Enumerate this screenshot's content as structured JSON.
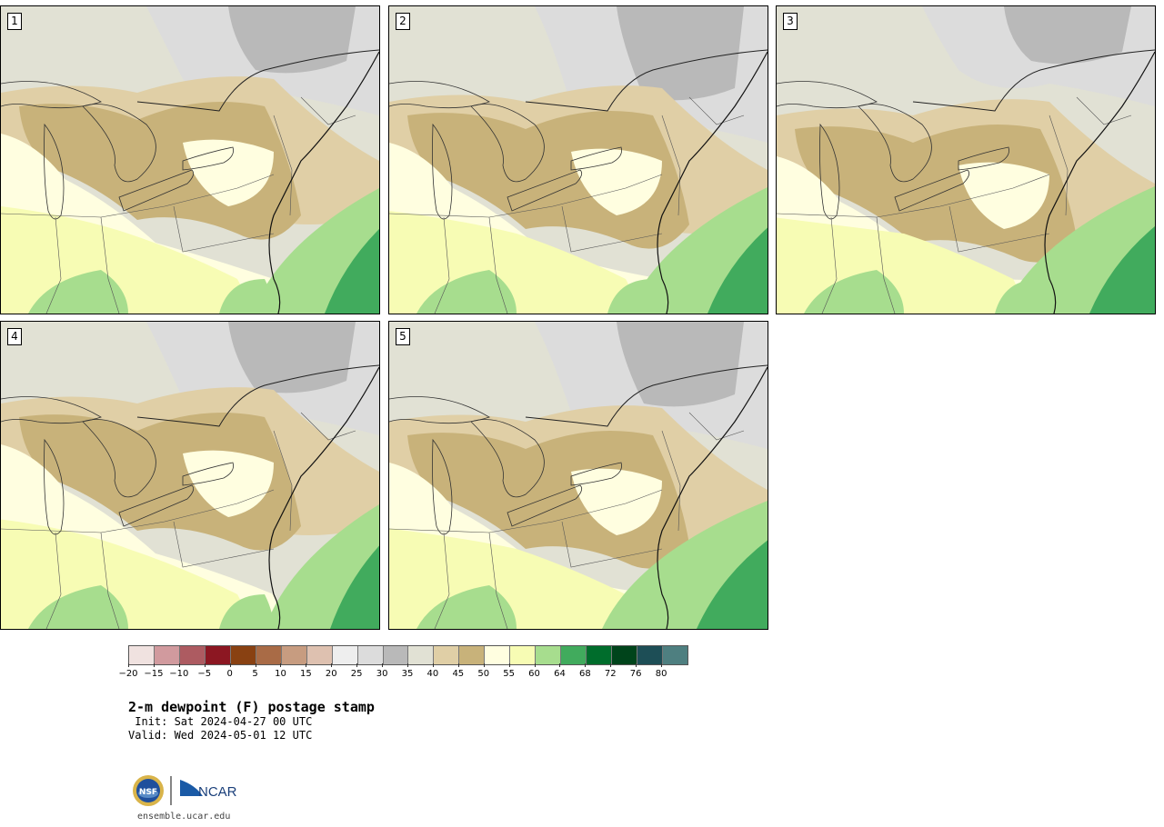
{
  "panels": [
    {
      "id": "1",
      "label": "1"
    },
    {
      "id": "2",
      "label": "2"
    },
    {
      "id": "3",
      "label": "3"
    },
    {
      "id": "4",
      "label": "4"
    },
    {
      "id": "5",
      "label": "5"
    }
  ],
  "colorbar": {
    "colors": [
      "#f0e2e0",
      "#d19a9e",
      "#ad5b61",
      "#8c1722",
      "#894112",
      "#a96b46",
      "#c79c80",
      "#dec1b0",
      "#eeeeee",
      "#dcdcdc",
      "#b9b9b9",
      "#e1e1d4",
      "#e0cfa6",
      "#c8b27a",
      "#fffee0",
      "#f7fcb4",
      "#a7dd8e",
      "#41ab5d",
      "#006d2c",
      "#00441b",
      "#1d4e56",
      "#4e7f80"
    ],
    "tick_labels": [
      "−20",
      "−15",
      "−10",
      "−5",
      "0",
      "5",
      "10",
      "15",
      "20",
      "25",
      "30",
      "35",
      "40",
      "45",
      "50",
      "55",
      "60",
      "64",
      "68",
      "72",
      "76",
      "80"
    ]
  },
  "title": "2-m dewpoint (F) postage stamp",
  "init": " Init: Sat 2024-04-27 00 UTC",
  "valid": "Valid: Wed 2024-05-01 12 UTC",
  "logos": {
    "nsf": "NSF",
    "ncar": "NCAR"
  },
  "site": "ensemble.ucar.edu"
}
